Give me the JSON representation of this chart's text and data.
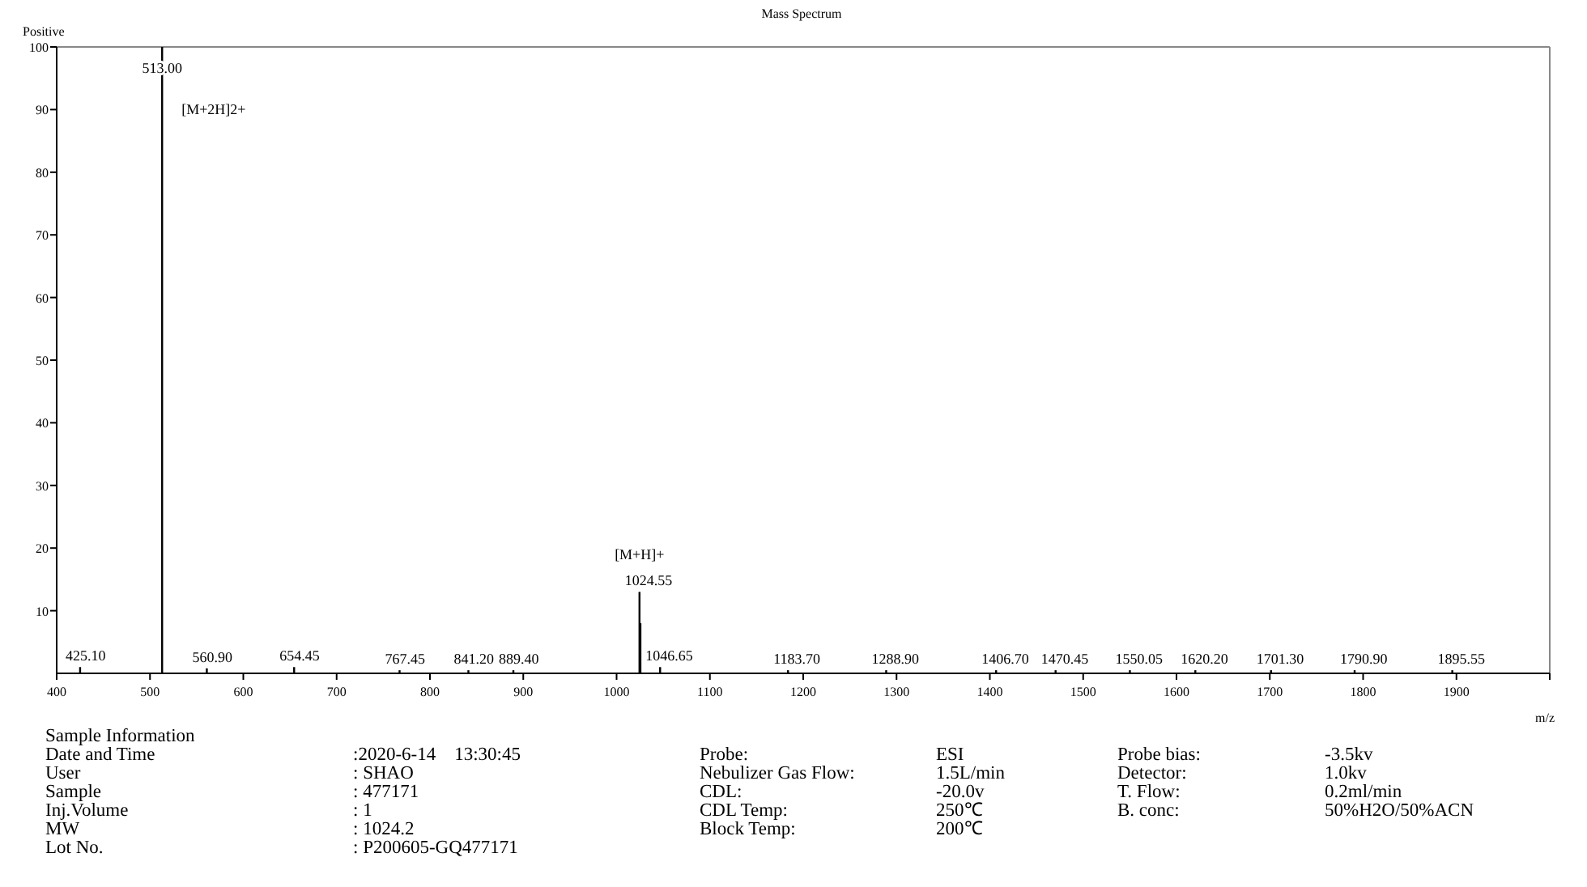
{
  "chart_data": {
    "type": "bar",
    "title": "Mass Spectrum",
    "ylabel": "Positive",
    "xlabel": "m/z",
    "x": [
      425.1,
      513.0,
      560.9,
      654.45,
      767.45,
      841.2,
      889.4,
      1024.55,
      1025.55,
      1046.65,
      1183.7,
      1288.9,
      1406.7,
      1470.45,
      1550.05,
      1620.2,
      1701.3,
      1790.9,
      1895.55
    ],
    "values": [
      1,
      100,
      0.8,
      1,
      0.5,
      0.5,
      0.5,
      13,
      8,
      1,
      0.5,
      0.5,
      0.5,
      0.5,
      0.5,
      0.5,
      0.5,
      0.5,
      0.5
    ],
    "color": "#000000",
    "xlim": [
      400,
      2000
    ],
    "xticks": [
      400,
      500,
      600,
      700,
      800,
      900,
      1000,
      1100,
      1200,
      1300,
      1400,
      1500,
      1600,
      1700,
      1800,
      1900,
      {
        "value": 2000,
        "label": null
      }
    ],
    "ylim": [
      0,
      100
    ],
    "yticks": [
      10,
      20,
      30,
      40,
      50,
      60,
      70,
      80,
      90,
      100
    ],
    "grid": false,
    "annotations": [
      {
        "text": "425.10",
        "x": 425.1,
        "y": 1
      },
      {
        "text": "513.00",
        "x": 513.0,
        "y": 100
      },
      {
        "text": "560.90",
        "x": 560.9,
        "y": 0.8
      },
      {
        "text": "654.45",
        "x": 654.45,
        "y": 1
      },
      {
        "text": "767.45",
        "x": 767.45,
        "y": 0.5
      },
      {
        "text": "841.20",
        "x": 841.2,
        "y": 0.5
      },
      {
        "text": "889.40",
        "x": 889.4,
        "y": 0.5
      },
      {
        "text": "1024.55",
        "x": 1024.55,
        "y": 13
      },
      {
        "text": "1046.65",
        "x": 1046.65,
        "y": 1
      },
      {
        "text": "1183.70",
        "x": 1183.7,
        "y": 0.5
      },
      {
        "text": "1288.90",
        "x": 1288.9,
        "y": 0.5
      },
      {
        "text": "1406.70",
        "x": 1406.7,
        "y": 0.5
      },
      {
        "text": "1470.45",
        "x": 1470.45,
        "y": 0.5
      },
      {
        "text": "1550.05",
        "x": 1550.05,
        "y": 0.5
      },
      {
        "text": "1620.20",
        "x": 1620.2,
        "y": 0.5
      },
      {
        "text": "1701.30",
        "x": 1701.3,
        "y": 0.5
      },
      {
        "text": "1790.90",
        "x": 1790.9,
        "y": 0.5
      },
      {
        "text": "1895.55",
        "x": 1895.55,
        "y": 0.5
      },
      {
        "text": "[M+2H]2+",
        "x": 513.0,
        "y": 90
      },
      {
        "text": "[M+H]+",
        "x": 1024.55,
        "y": 13
      },
      "Sample Information",
      "Date and Time",
      ":2020-6-14    13:30:45",
      "User",
      ": SHAO",
      "Sample",
      ": 477171",
      "Inj.Volume",
      ": 1",
      "MW",
      ": 1024.2",
      "Lot No.",
      ": P200605-GQ477171",
      "Probe:",
      "ESI",
      "Nebulizer Gas Flow:",
      "1.5L/min",
      "CDL:",
      "-20.0v",
      "CDL Temp:",
      "250℃",
      "Block Temp:",
      "200℃",
      "Probe bias:",
      "-3.5kv",
      "Detector:",
      "1.0kv",
      "T. Flow:",
      "0.2ml/min",
      "B. conc:",
      "50%H2O/50%ACN"
    ]
  }
}
